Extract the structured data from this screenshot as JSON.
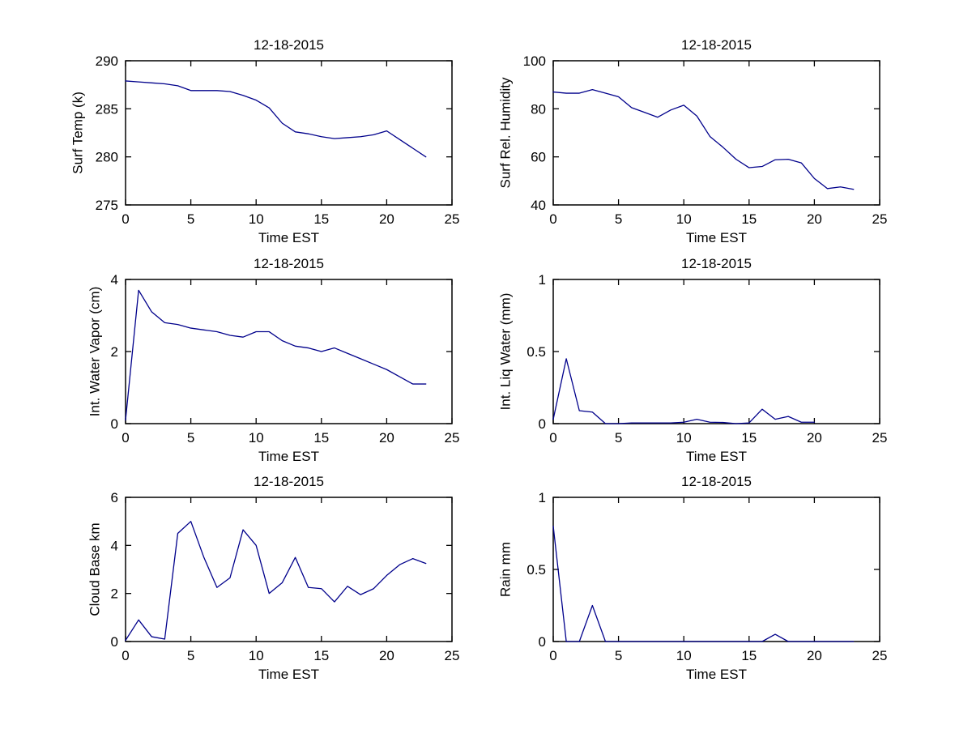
{
  "figure": {
    "background": "#ffffff",
    "line_color": "#00008B",
    "axis_color": "#000000",
    "text_color": "#000000"
  },
  "chart_data": [
    {
      "type": "line",
      "title": "12-18-2015",
      "xlabel": "Time EST",
      "ylabel": "Surf Temp (k)",
      "xlim": [
        0,
        25
      ],
      "ylim": [
        275,
        290
      ],
      "xticks": [
        "0",
        "5",
        "10",
        "15",
        "20",
        "25"
      ],
      "yticks": [
        "275",
        "280",
        "285",
        "290"
      ],
      "grid": false,
      "legend": "none",
      "x": [
        0,
        1,
        2,
        3,
        4,
        5,
        6,
        7,
        8,
        9,
        10,
        11,
        12,
        13,
        14,
        15,
        16,
        17,
        18,
        19,
        20,
        21,
        22,
        23
      ],
      "y": [
        287.9,
        287.8,
        287.7,
        287.6,
        287.4,
        286.9,
        286.9,
        286.9,
        286.8,
        286.4,
        285.9,
        285.1,
        283.5,
        282.6,
        282.4,
        282.1,
        281.9,
        282.0,
        282.1,
        282.3,
        282.7,
        281.8,
        280.9,
        280.0
      ]
    },
    {
      "type": "line",
      "title": "12-18-2015",
      "xlabel": "Time EST",
      "ylabel": "Surf Rel. Humidity",
      "xlim": [
        0,
        25
      ],
      "ylim": [
        40,
        100
      ],
      "xticks": [
        "0",
        "5",
        "10",
        "15",
        "20",
        "25"
      ],
      "yticks": [
        "40",
        "60",
        "80",
        "100"
      ],
      "grid": false,
      "legend": "none",
      "x": [
        0,
        1,
        2,
        3,
        4,
        5,
        6,
        7,
        8,
        9,
        10,
        11,
        12,
        13,
        14,
        15,
        16,
        17,
        18,
        19,
        20,
        21,
        22,
        23
      ],
      "y": [
        87,
        86.5,
        86.5,
        88,
        86.5,
        85,
        80.5,
        78.5,
        76.5,
        79.5,
        81.5,
        77,
        68.5,
        64,
        59,
        55.5,
        56,
        58.8,
        59,
        57.5,
        51,
        46.8,
        47.5,
        46.5
      ]
    },
    {
      "type": "line",
      "title": "12-18-2015",
      "xlabel": "Time EST",
      "ylabel": "Int. Water Vapor (cm)",
      "xlim": [
        0,
        25
      ],
      "ylim": [
        0,
        4
      ],
      "xticks": [
        "0",
        "5",
        "10",
        "15",
        "20",
        "25"
      ],
      "yticks": [
        "0",
        "2",
        "4"
      ],
      "grid": false,
      "legend": "none",
      "x": [
        0,
        1,
        2,
        3,
        4,
        5,
        6,
        7,
        8,
        9,
        10,
        11,
        12,
        13,
        14,
        15,
        16,
        17,
        18,
        19,
        20,
        21,
        22,
        23
      ],
      "y": [
        0.1,
        3.7,
        3.1,
        2.8,
        2.75,
        2.65,
        2.6,
        2.55,
        2.45,
        2.4,
        2.55,
        2.55,
        2.3,
        2.15,
        2.1,
        2.0,
        2.1,
        1.95,
        1.8,
        1.65,
        1.5,
        1.3,
        1.1,
        1.1
      ]
    },
    {
      "type": "line",
      "title": "12-18-2015",
      "xlabel": "Time EST",
      "ylabel": "Int. Liq Water (mm)",
      "xlim": [
        0,
        25
      ],
      "ylim": [
        0,
        1
      ],
      "xticks": [
        "0",
        "5",
        "10",
        "15",
        "20",
        "25"
      ],
      "yticks": [
        "0",
        "0.5",
        "1"
      ],
      "grid": false,
      "legend": "none",
      "x": [
        0,
        1,
        2,
        3,
        4,
        5,
        6,
        7,
        8,
        9,
        10,
        11,
        12,
        13,
        14,
        15,
        16,
        17,
        18,
        19,
        20
      ],
      "y": [
        0.03,
        0.45,
        0.09,
        0.08,
        0,
        0,
        0.005,
        0.005,
        0.005,
        0.005,
        0.01,
        0.03,
        0.01,
        0.008,
        0,
        0.005,
        0.1,
        0.03,
        0.05,
        0.01,
        0.01
      ]
    },
    {
      "type": "line",
      "title": "12-18-2015",
      "xlabel": "Time EST",
      "ylabel": "Cloud Base km",
      "xlim": [
        0,
        25
      ],
      "ylim": [
        0,
        6
      ],
      "xticks": [
        "0",
        "5",
        "10",
        "15",
        "20",
        "25"
      ],
      "yticks": [
        "0",
        "2",
        "4",
        "6"
      ],
      "grid": false,
      "legend": "none",
      "x": [
        0,
        1,
        2,
        3,
        4,
        5,
        6,
        7,
        8,
        9,
        10,
        11,
        12,
        13,
        14,
        15,
        16,
        17,
        18,
        19,
        20,
        21,
        22,
        23
      ],
      "y": [
        0.05,
        0.9,
        0.2,
        0.1,
        4.5,
        5.0,
        3.5,
        2.25,
        2.65,
        4.65,
        4.0,
        2.0,
        2.45,
        3.5,
        2.25,
        2.2,
        1.65,
        2.3,
        1.95,
        2.2,
        2.75,
        3.2,
        3.45,
        3.25
      ]
    },
    {
      "type": "line",
      "title": "12-18-2015",
      "xlabel": "Time EST",
      "ylabel": "Rain mm",
      "xlim": [
        0,
        25
      ],
      "ylim": [
        0,
        1
      ],
      "xticks": [
        "0",
        "5",
        "10",
        "15",
        "20",
        "25"
      ],
      "yticks": [
        "0",
        "0.5",
        "1"
      ],
      "grid": false,
      "legend": "none",
      "x": [
        0,
        1,
        2,
        3,
        4,
        5,
        6,
        7,
        8,
        9,
        10,
        11,
        12,
        13,
        14,
        15,
        16,
        17,
        18,
        19,
        20,
        21,
        22,
        23
      ],
      "y": [
        0.8,
        0,
        0,
        0.25,
        0,
        0,
        0,
        0,
        0,
        0,
        0,
        0,
        0,
        0,
        0,
        0,
        0,
        0.05,
        0,
        0,
        0,
        0,
        0,
        0
      ]
    }
  ]
}
